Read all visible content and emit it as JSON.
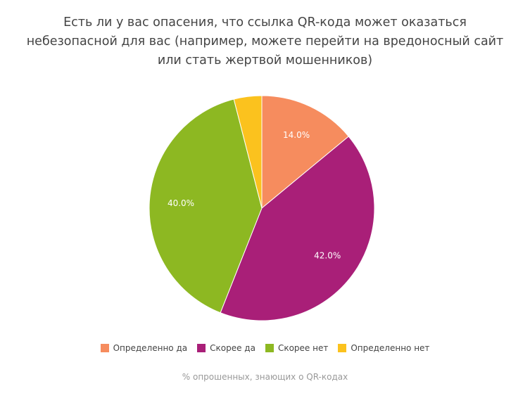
{
  "title": {
    "lines": [
      "Есть ли у вас опасения, что ссылка QR-кода может оказаться",
      "небезопасной для вас (например, можете перейти на вредоносный сайт",
      "или стать жертвой мошенников)"
    ]
  },
  "legend": {
    "items": [
      {
        "label": "Определенно да",
        "color": "#F68C5E"
      },
      {
        "label": "Скорее да",
        "color": "#A91F78"
      },
      {
        "label": "Скорее нет",
        "color": "#8DB822"
      },
      {
        "label": "Определенно нет",
        "color": "#FBC21E"
      }
    ]
  },
  "caption": "% опрошенных, знающих о QR-кодах",
  "slice_labels": [
    "14.0%",
    "42.0%",
    "40.0%",
    ""
  ],
  "chart_data": {
    "type": "pie",
    "title": "Есть ли у вас опасения, что ссылка QR-кода может оказаться небезопасной для вас (например, можете перейти на вредоносный сайт или стать жертвой мошенников)",
    "categories": [
      "Определенно да",
      "Скорее да",
      "Скорее нет",
      "Определенно нет"
    ],
    "values": [
      14.0,
      42.0,
      40.0,
      4.0
    ],
    "colors": [
      "#F68C5E",
      "#A91F78",
      "#8DB822",
      "#FBC21E"
    ],
    "data_labels": [
      "14.0%",
      "42.0%",
      "40.0%",
      ""
    ],
    "xlabel": "% опрошенных, знающих о QR-кодах",
    "legend_position": "bottom",
    "start_angle_deg": 0,
    "direction": "clockwise"
  }
}
